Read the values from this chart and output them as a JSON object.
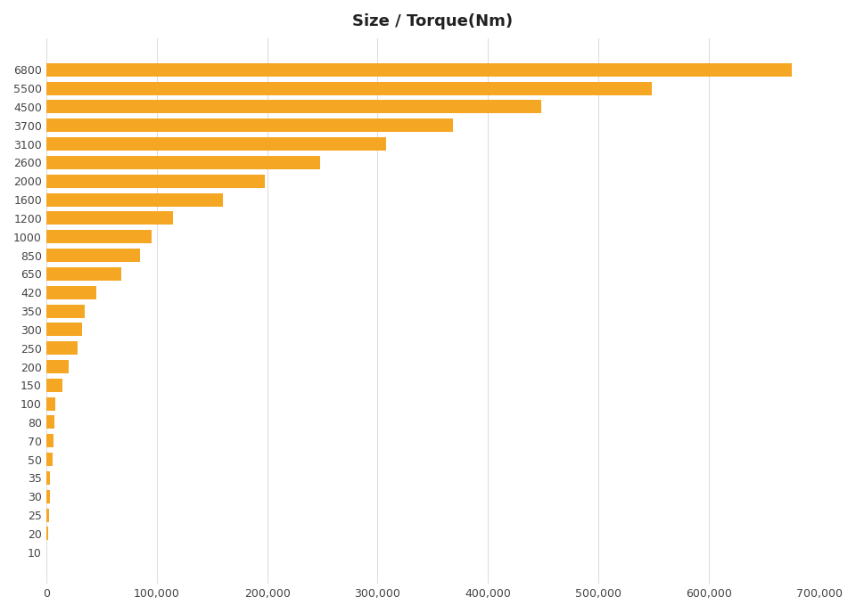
{
  "title": "Size / Torque(Nm)",
  "categories": [
    "6800",
    "5500",
    "4500",
    "3700",
    "3100",
    "2600",
    "2000",
    "1600",
    "1200",
    "1000",
    "850",
    "650",
    "420",
    "350",
    "300",
    "250",
    "200",
    "150",
    "100",
    "80",
    "70",
    "50",
    "35",
    "30",
    "25",
    "20",
    "10"
  ],
  "values": [
    675000,
    548000,
    448000,
    368000,
    308000,
    248000,
    198000,
    160000,
    115000,
    95000,
    85000,
    68000,
    45000,
    35000,
    32000,
    28000,
    20000,
    15000,
    8000,
    7000,
    6500,
    5500,
    3500,
    3000,
    2500,
    2000,
    500
  ],
  "bar_color": "#F5A623",
  "background_color": "#FFFFFF",
  "grid_color": "#DDDDDD",
  "xlim": [
    0,
    700000
  ],
  "xticks": [
    0,
    100000,
    200000,
    300000,
    400000,
    500000,
    600000,
    700000
  ],
  "xtick_labels": [
    "0",
    "100,000",
    "200,000",
    "300,000",
    "400,000",
    "500,000",
    "600,000",
    "700,000"
  ],
  "title_fontsize": 13,
  "tick_fontsize": 9,
  "bar_height": 0.72
}
